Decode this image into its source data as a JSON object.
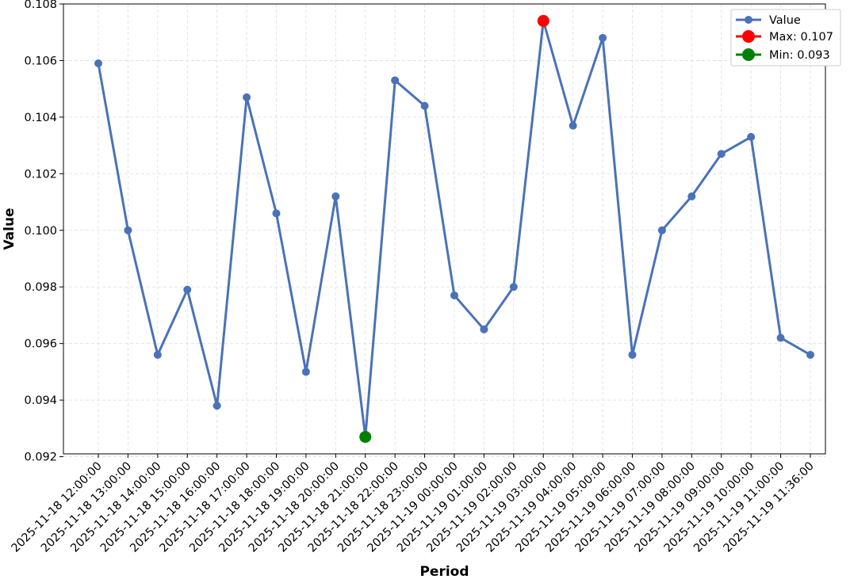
{
  "chart_data": {
    "type": "line",
    "xlabel": "Period",
    "ylabel": "Value",
    "categories": [
      "2025-11-18 12:00:00",
      "2025-11-18 13:00:00",
      "2025-11-18 14:00:00",
      "2025-11-18 15:00:00",
      "2025-11-18 16:00:00",
      "2025-11-18 17:00:00",
      "2025-11-18 18:00:00",
      "2025-11-18 19:00:00",
      "2025-11-18 20:00:00",
      "2025-11-18 21:00:00",
      "2025-11-18 22:00:00",
      "2025-11-18 23:00:00",
      "2025-11-19 00:00:00",
      "2025-11-19 01:00:00",
      "2025-11-19 02:00:00",
      "2025-11-19 03:00:00",
      "2025-11-19 04:00:00",
      "2025-11-19 05:00:00",
      "2025-11-19 06:00:00",
      "2025-11-19 07:00:00",
      "2025-11-19 08:00:00",
      "2025-11-19 09:00:00",
      "2025-11-19 10:00:00",
      "2025-11-19 11:00:00",
      "2025-11-19 11:36:00"
    ],
    "series": [
      {
        "name": "Value",
        "color": "#4a72b8",
        "values": [
          0.1059,
          0.1,
          0.0956,
          0.0979,
          0.0938,
          0.1047,
          0.1006,
          0.095,
          0.1012,
          0.0927,
          0.1053,
          0.1044,
          0.0977,
          0.0965,
          0.098,
          0.1074,
          0.1037,
          0.1068,
          0.0956,
          0.1,
          0.1012,
          0.1027,
          0.1033,
          0.0962,
          0.0956
        ]
      }
    ],
    "highlights": [
      {
        "label": "Max: 0.107",
        "index": 15,
        "value": 0.1074,
        "color": "#ff0000"
      },
      {
        "label": "Min: 0.093",
        "index": 9,
        "value": 0.0927,
        "color": "#008000"
      }
    ],
    "ylim": [
      0.0921,
      0.108
    ],
    "yticks": [
      0.092,
      0.094,
      0.096,
      0.098,
      0.1,
      0.102,
      0.104,
      0.106,
      0.108
    ],
    "ytick_labels": [
      "0.092",
      "0.094",
      "0.096",
      "0.098",
      "0.100",
      "0.102",
      "0.104",
      "0.106",
      "0.108"
    ],
    "grid": true,
    "legend_position": "top-right"
  }
}
